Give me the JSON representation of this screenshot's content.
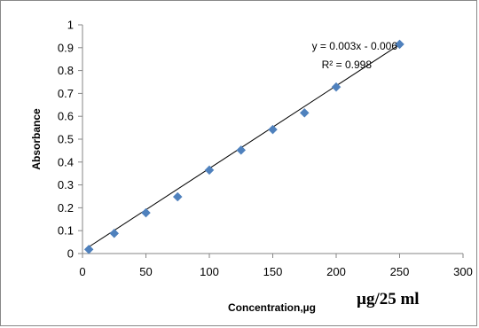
{
  "chart_data": {
    "type": "scatter",
    "x": [
      5,
      25,
      50,
      75,
      100,
      125,
      150,
      175,
      200,
      250
    ],
    "y": [
      0.018,
      0.088,
      0.178,
      0.248,
      0.365,
      0.452,
      0.542,
      0.615,
      0.728,
      0.915
    ],
    "xlim": [
      0,
      300
    ],
    "ylim": [
      0,
      1
    ],
    "xticks": [
      0,
      50,
      100,
      150,
      200,
      250,
      300
    ],
    "yticks": [
      0,
      0.1,
      0.2,
      0.3,
      0.4,
      0.5,
      0.6,
      0.7,
      0.8,
      0.9,
      1
    ],
    "ylabel": "Absorbance",
    "xlabel": "Concentration,µg",
    "xlabel_unit": "µg/25 ml",
    "trendline": {
      "slope": 0.003,
      "intercept": -0.006,
      "equation": "y = 0.003x - 0.006",
      "r2_label": "R² = 0.998",
      "x_range": [
        5,
        250
      ]
    },
    "grid": false,
    "marker": "diamond",
    "colors": {
      "marker": "#4f81bd",
      "trendline": "#000000",
      "axis": "#868686"
    }
  }
}
